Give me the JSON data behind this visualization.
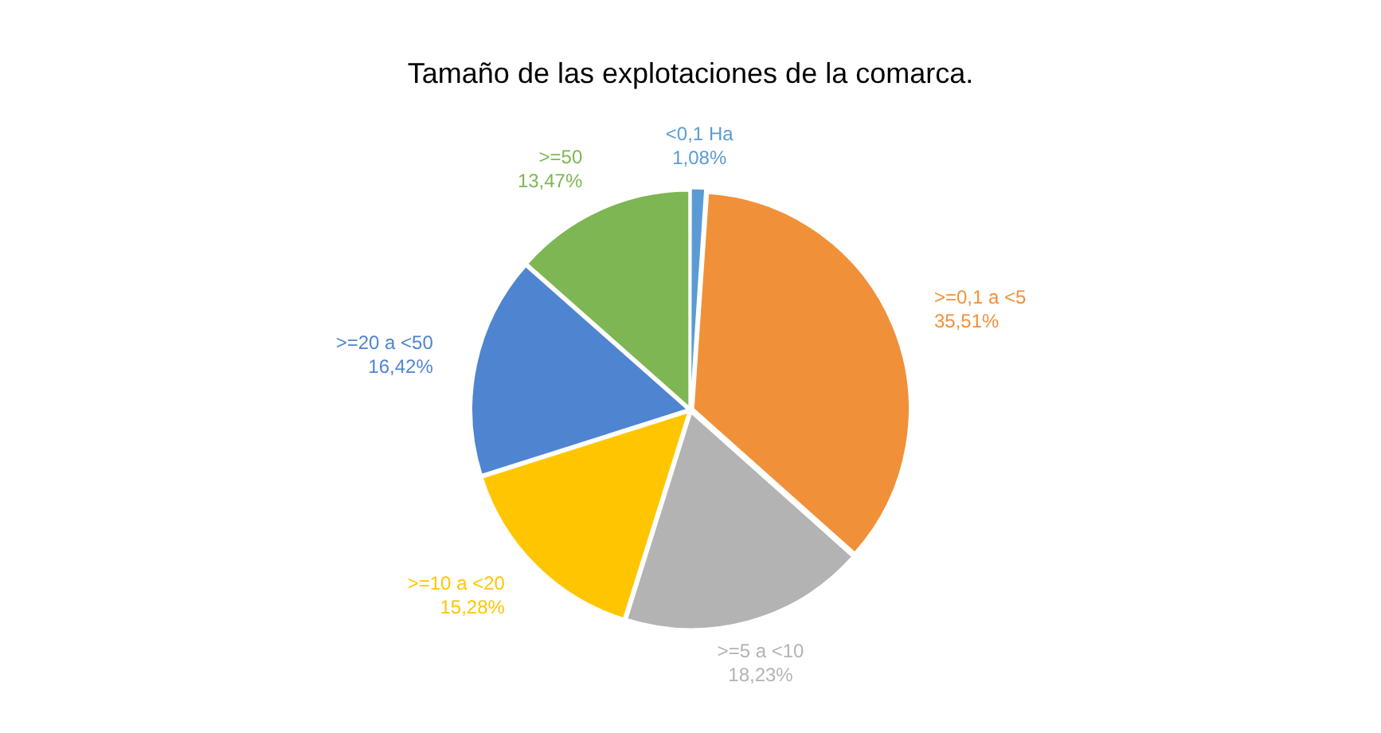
{
  "chart_data": {
    "type": "pie",
    "title": "Tamaño de las explotaciones de la comarca.",
    "categories": [
      "<0,1 Ha",
      ">=0,1 a <5",
      ">=5 a <10",
      ">=10 a <20",
      ">=20 a <50",
      ">=50"
    ],
    "values": [
      1.08,
      35.51,
      18.23,
      15.28,
      16.42,
      13.47
    ],
    "colors": [
      "#5b9bd5",
      "#f0913a",
      "#b3b3b3",
      "#ffc600",
      "#4f84d0",
      "#7db653"
    ],
    "value_labels": [
      "1,08%",
      "35,51%",
      "18,23%",
      "15,28%",
      "16,42%",
      "13,47%"
    ]
  }
}
